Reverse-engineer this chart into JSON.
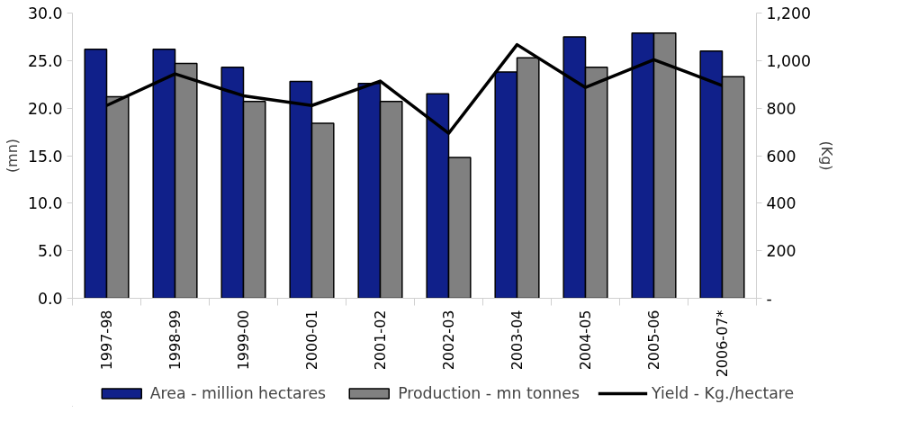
{
  "chart_data": {
    "type": "bar",
    "ylabel": "(mn)",
    "y2label": "(Kg)",
    "categories": [
      "1997-98",
      "1998-99",
      "1999-00",
      "2000-01",
      "2001-02",
      "2002-03",
      "2003-04",
      "2004-05",
      "2005-06",
      "2006-07*"
    ],
    "series": [
      {
        "name": "Area - million hectares",
        "color": "#10208a",
        "values": [
          26.2,
          26.2,
          24.3,
          22.8,
          22.6,
          21.5,
          23.8,
          27.5,
          27.9,
          26.0
        ]
      },
      {
        "name": "Production - mn tonnes",
        "color": "#808080",
        "values": [
          21.2,
          24.7,
          20.7,
          18.4,
          20.7,
          14.8,
          25.3,
          24.3,
          27.9,
          23.3
        ]
      },
      {
        "name": "Yield - Kg./hectare",
        "type": "line",
        "axis": "y2",
        "color": "#000000",
        "values": [
          811,
          944,
          852,
          811,
          914,
          694,
          1067,
          887,
          1004,
          895
        ]
      }
    ],
    "ylim": [
      0,
      30
    ],
    "yticks": [
      {
        "value": 0,
        "label": "0.0"
      },
      {
        "value": 5,
        "label": "5.0"
      },
      {
        "value": 10,
        "label": "10.0"
      },
      {
        "value": 15,
        "label": "15.0"
      },
      {
        "value": 20,
        "label": "20.0"
      },
      {
        "value": 25,
        "label": "25.0"
      },
      {
        "value": 30,
        "label": "30.0"
      }
    ],
    "y2lim": [
      0,
      1200
    ],
    "y2ticks": [
      {
        "value": 0,
        "label": "-"
      },
      200,
      400,
      600,
      800,
      {
        "value": 1000,
        "label": "1,000"
      },
      {
        "value": 1200,
        "label": "1,200"
      }
    ],
    "grid": false,
    "legend": "bottom",
    "marker": "none",
    "line_style": "solid"
  }
}
